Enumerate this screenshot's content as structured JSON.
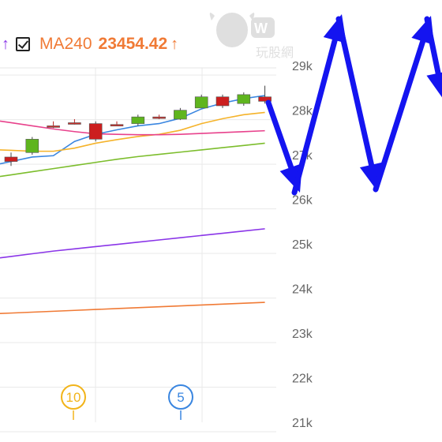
{
  "legend": {
    "prev_arrow": "↑",
    "checkbox_checked": true,
    "ma_label": "MA240",
    "ma_value": "23454.42",
    "ma_arrow": "↑",
    "ma_color": "#f07a35",
    "prev_arrow_color": "#8a35e8"
  },
  "watermark": {
    "text": "玩股網",
    "logo_text": "W"
  },
  "chart_data": {
    "type": "candlestick",
    "ylim": [
      21000,
      29500
    ],
    "yticks": [
      {
        "value": 29000,
        "label": "29k"
      },
      {
        "value": 28000,
        "label": "28k"
      },
      {
        "value": 27000,
        "label": "27k"
      },
      {
        "value": 26000,
        "label": "26k"
      },
      {
        "value": 25000,
        "label": "25k"
      },
      {
        "value": 24000,
        "label": "24k"
      },
      {
        "value": 23000,
        "label": "23k"
      },
      {
        "value": 22000,
        "label": "22k"
      },
      {
        "value": 21000,
        "label": "21k"
      }
    ],
    "candles": [
      {
        "open": 26850,
        "close": 26950,
        "high": 27050,
        "low": 26750
      },
      {
        "open": 27350,
        "close": 27050,
        "high": 27400,
        "low": 27000
      },
      {
        "open": 27650,
        "close": 27650,
        "high": 27750,
        "low": 27600
      },
      {
        "open": 27720,
        "close": 27720,
        "high": 27800,
        "low": 27680
      },
      {
        "open": 27350,
        "close": 27700,
        "high": 27750,
        "low": 27300
      },
      {
        "open": 27680,
        "close": 27680,
        "high": 27750,
        "low": 27650
      },
      {
        "open": 27850,
        "close": 27700,
        "high": 27900,
        "low": 27650
      },
      {
        "open": 27850,
        "close": 27850,
        "high": 27900,
        "low": 27800
      },
      {
        "open": 28000,
        "close": 27800,
        "high": 28050,
        "low": 27780
      },
      {
        "open": 28300,
        "close": 28050,
        "high": 28350,
        "low": 28050
      },
      {
        "open": 28100,
        "close": 28300,
        "high": 28350,
        "low": 28050
      },
      {
        "open": 28350,
        "close": 28150,
        "high": 28400,
        "low": 28100
      },
      {
        "open": 28200,
        "close": 28300,
        "high": 28550,
        "low": 28150
      }
    ],
    "series": [
      {
        "color": "#3a86e0",
        "values": [
          26850,
          26950,
          26980,
          27300,
          27460,
          27560,
          27650,
          27700,
          27820,
          28030,
          28160,
          28260,
          28330
        ]
      },
      {
        "color": "#f5b32a",
        "values": [
          27100,
          27080,
          27080,
          27150,
          27260,
          27340,
          27410,
          27460,
          27550,
          27700,
          27810,
          27900,
          27950
        ]
      },
      {
        "color": "#e8428c",
        "values": [
          27720,
          27650,
          27580,
          27520,
          27470,
          27460,
          27450,
          27450,
          27460,
          27480,
          27500,
          27520,
          27540
        ]
      },
      {
        "color": "#7cbd2c",
        "values": [
          26550,
          26620,
          26690,
          26760,
          26830,
          26900,
          26960,
          27010,
          27060,
          27110,
          27160,
          27210,
          27260
        ]
      },
      {
        "color": "#8a35e8",
        "values": [
          24720,
          24780,
          24840,
          24890,
          24940,
          24990,
          25040,
          25090,
          25140,
          25190,
          25240,
          25290,
          25340
        ]
      },
      {
        "color": "#f07a35",
        "values": [
          23450,
          23470,
          23490,
          23510,
          23530,
          23550,
          23570,
          23590,
          23610,
          23630,
          23650,
          23670,
          23690
        ]
      }
    ],
    "markers": [
      {
        "label": "10",
        "color": "#f2b41a",
        "index": 3
      },
      {
        "label": "5",
        "color": "#3a86e0",
        "index": 8
      }
    ],
    "annotation": {
      "type": "zigzag-arrows",
      "color": "#1414f0"
    }
  }
}
